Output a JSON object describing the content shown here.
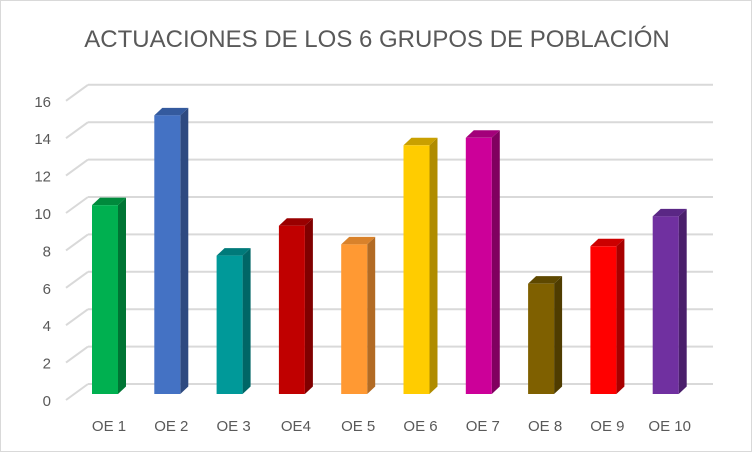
{
  "chart_data": {
    "type": "bar",
    "title": "ACTUACIONES DE LOS 6 GRUPOS DE POBLACIÓN",
    "xlabel": "",
    "ylabel": "",
    "categories": [
      "OE 1",
      "OE 2",
      "OE 3",
      "OE4",
      "OE 5",
      "OE 6",
      "OE 7",
      "OE 8",
      "OE 9",
      "OE 10"
    ],
    "values": [
      10.1,
      14.9,
      7.4,
      9.0,
      8.0,
      13.3,
      13.7,
      5.9,
      7.9,
      9.5
    ],
    "colors": [
      "#00b050",
      "#4472c4",
      "#009999",
      "#c00000",
      "#ff9933",
      "#ffcc00",
      "#cc0099",
      "#7f6000",
      "#ff0000",
      "#7030a0"
    ],
    "side_colors": [
      "#007534",
      "#2e4a80",
      "#006666",
      "#800000",
      "#b26b24",
      "#b08c00",
      "#80005f",
      "#4f3c00",
      "#a80000",
      "#4a1f6b"
    ],
    "top_colors": [
      "#008a3c",
      "#345a9e",
      "#007a7a",
      "#990000",
      "#d9822b",
      "#c9a000",
      "#a3007a",
      "#5e4800",
      "#cc0000",
      "#5a2785"
    ],
    "yticks": [
      0,
      2,
      4,
      6,
      8,
      10,
      12,
      14,
      16
    ],
    "ylim": [
      0,
      16
    ],
    "grid": true,
    "legend": "none"
  }
}
